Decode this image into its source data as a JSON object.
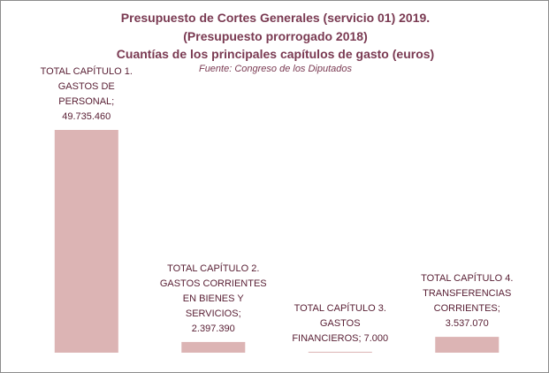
{
  "chart_data": {
    "type": "bar",
    "title_lines": [
      "Presupuesto de Cortes Generales (servicio 01) 2019.",
      "(Presupuesto prorrogado 2018)",
      "Cuantías de los principales capítulos de gasto (euros)"
    ],
    "source": "Fuente:  Congreso de los Diputados",
    "categories": [
      "TOTAL CAPÍTULO 1. GASTOS DE PERSONAL",
      "TOTAL CAPÍTULO 2. GASTOS CORRIENTES EN BIENES Y SERVICIOS",
      "TOTAL CAPÍTULO 3. GASTOS FINANCIEROS",
      "TOTAL CAPÍTULO 4. TRANSFERENCIAS CORRIENTES"
    ],
    "values": [
      49735460,
      2397390,
      7000,
      3537070
    ],
    "data_labels": [
      [
        "TOTAL CAPÍTULO 1.",
        "GASTOS DE",
        "PERSONAL;",
        "49.735.460"
      ],
      [
        "TOTAL CAPÍTULO 2.",
        "GASTOS CORRIENTES",
        "EN BIENES Y",
        "SERVICIOS;",
        "2.397.390"
      ],
      [
        "TOTAL CAPÍTULO 3.",
        "GASTOS",
        "FINANCIEROS; 7.000"
      ],
      [
        "TOTAL CAPÍTULO 4.",
        "TRANSFERENCIAS",
        "CORRIENTES;",
        "3.537.070"
      ]
    ],
    "xlabel": "",
    "ylabel": "",
    "ylim": [
      0,
      49735460
    ],
    "grid": false,
    "legend": "none",
    "bar_color": "#dcb4b4",
    "text_color": "#7a3a52"
  }
}
